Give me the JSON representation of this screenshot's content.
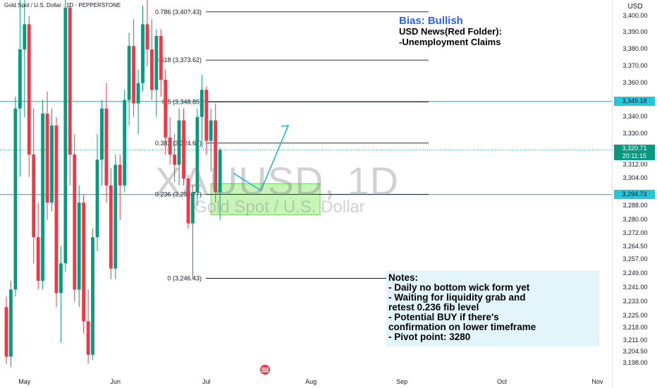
{
  "symbol_line": "Gold Spot / U.S. Dollar · 1D · PEPPERSTONE",
  "watermark": {
    "symbol": "XAUUSD, 1D",
    "name": "Gold Spot / U.S. Dollar"
  },
  "price_axis": {
    "currency": "USD",
    "labels": [
      {
        "text": "3,400.00",
        "value": 3400
      },
      {
        "text": "3,390.00",
        "value": 3390
      },
      {
        "text": "3,380.00",
        "value": 3380
      },
      {
        "text": "3,370.00",
        "value": 3370
      },
      {
        "text": "3,360.00",
        "value": 3360
      },
      {
        "text": "3,340.00",
        "value": 3340
      },
      {
        "text": "3,330.00",
        "value": 3330
      },
      {
        "text": "3,312.00",
        "value": 3312
      },
      {
        "text": "3,304.00",
        "value": 3304
      },
      {
        "text": "3,288.00",
        "value": 3288
      },
      {
        "text": "3,280.00",
        "value": 3280
      },
      {
        "text": "3,272.00",
        "value": 3272
      },
      {
        "text": "3,264.50",
        "value": 3264.5
      },
      {
        "text": "3,257.00",
        "value": 3257
      },
      {
        "text": "3,249.00",
        "value": 3249
      },
      {
        "text": "3,241.00",
        "value": 3241
      },
      {
        "text": "3,233.00",
        "value": 3233
      },
      {
        "text": "3,225.00",
        "value": 3225
      },
      {
        "text": "3,218.00",
        "value": 3218
      },
      {
        "text": "3,211.00",
        "value": 3211
      },
      {
        "text": "3,204.50",
        "value": 3204.5
      },
      {
        "text": "3,198.00",
        "value": 3198
      }
    ],
    "tags": {
      "resistance": {
        "text": "3,349.18",
        "value": 3349.18
      },
      "current_price": {
        "text": "3,320.71",
        "value": 3320.71
      },
      "countdown": "20:11:15",
      "support": {
        "text": "3,294.73",
        "value": 3294.73
      }
    }
  },
  "x_axis": [
    {
      "text": "May",
      "index": 4
    },
    {
      "text": "Jun",
      "index": 24
    },
    {
      "text": "Jul",
      "index": 44
    },
    {
      "text": "Aug",
      "index": 67
    },
    {
      "text": "Sep",
      "index": 87
    },
    {
      "text": "Oct",
      "index": 109
    },
    {
      "text": "Nov",
      "index": 130
    }
  ],
  "fib_levels": [
    {
      "label": "0.786 (3,40?.43)",
      "value": 3402.43
    },
    {
      "label": "0.618 (3,373.62)",
      "value": 3373.62
    },
    {
      "label": "0.5 (3,348.85)",
      "value": 3348.85
    },
    {
      "label": "0.382 (3,324.67)",
      "value": 3324.67
    },
    {
      "label": "0.236 (3,294.77)",
      "value": 3294.77
    },
    {
      "label": "0 (3,246.43)",
      "value": 3246.43
    }
  ],
  "bias": {
    "title": "Bias: Bullish",
    "lines": [
      "USD News(Red Folder):",
      "-Unemployment Claims"
    ]
  },
  "notes": {
    "lines": [
      "Notes:",
      "- Daily no bottom wick form yet",
      "- Waiting for liquidity grab and",
      "retest 0.236 fib level",
      "- Potential BUY if there's",
      "confirmation on lower timeframe",
      "- Pivot point: 3280"
    ]
  },
  "colors": {
    "up": "#089981",
    "down": "#f23645",
    "cyan": "#26c6da",
    "zone_fill": "#b7f0a0",
    "zone_border": "#6cd35a",
    "arrow": "#29b6d6"
  },
  "zone": {
    "index_start": 45,
    "index_end": 69,
    "low": 3283,
    "high": 3301
  },
  "projection": [
    {
      "index": 50,
      "value": 3307
    },
    {
      "index": 56,
      "value": 3297
    },
    {
      "index": 62,
      "value": 3335
    }
  ],
  "chart_data": {
    "type": "candlestick",
    "title": "Gold Spot / U.S. Dollar · 1D · PEPPERSTONE",
    "ylim": [
      3195,
      3407
    ],
    "y_scale": "log",
    "candles": [
      {
        "o": 3230,
        "h": 3236,
        "l": 3198,
        "c": 3202
      },
      {
        "o": 3202,
        "h": 3245,
        "l": 3196,
        "c": 3240
      },
      {
        "o": 3240,
        "h": 3352,
        "l": 3236,
        "c": 3345
      },
      {
        "o": 3345,
        "h": 3420,
        "l": 3305,
        "c": 3380
      },
      {
        "o": 3380,
        "h": 3418,
        "l": 3340,
        "c": 3395
      },
      {
        "o": 3395,
        "h": 3400,
        "l": 3305,
        "c": 3318
      },
      {
        "o": 3318,
        "h": 3345,
        "l": 3255,
        "c": 3270
      },
      {
        "o": 3270,
        "h": 3290,
        "l": 3240,
        "c": 3245
      },
      {
        "o": 3245,
        "h": 3350,
        "l": 3240,
        "c": 3342
      },
      {
        "o": 3342,
        "h": 3355,
        "l": 3280,
        "c": 3290
      },
      {
        "o": 3290,
        "h": 3345,
        "l": 3285,
        "c": 3335
      },
      {
        "o": 3335,
        "h": 3340,
        "l": 3230,
        "c": 3238
      },
      {
        "o": 3238,
        "h": 3265,
        "l": 3210,
        "c": 3255
      },
      {
        "o": 3255,
        "h": 3412,
        "l": 3250,
        "c": 3405
      },
      {
        "o": 3405,
        "h": 3408,
        "l": 3300,
        "c": 3318
      },
      {
        "o": 3318,
        "h": 3330,
        "l": 3233,
        "c": 3240
      },
      {
        "o": 3240,
        "h": 3300,
        "l": 3230,
        "c": 3290
      },
      {
        "o": 3290,
        "h": 3295,
        "l": 3215,
        "c": 3222
      },
      {
        "o": 3222,
        "h": 3240,
        "l": 3198,
        "c": 3203
      },
      {
        "o": 3203,
        "h": 3275,
        "l": 3200,
        "c": 3270
      },
      {
        "o": 3270,
        "h": 3330,
        "l": 3262,
        "c": 3315
      },
      {
        "o": 3315,
        "h": 3350,
        "l": 3300,
        "c": 3345
      },
      {
        "o": 3345,
        "h": 3360,
        "l": 3290,
        "c": 3300
      },
      {
        "o": 3300,
        "h": 3310,
        "l": 3246,
        "c": 3252
      },
      {
        "o": 3252,
        "h": 3318,
        "l": 3246,
        "c": 3312
      },
      {
        "o": 3312,
        "h": 3318,
        "l": 3280,
        "c": 3300
      },
      {
        "o": 3300,
        "h": 3356,
        "l": 3296,
        "c": 3350
      },
      {
        "o": 3350,
        "h": 3390,
        "l": 3335,
        "c": 3382
      },
      {
        "o": 3382,
        "h": 3398,
        "l": 3340,
        "c": 3348
      },
      {
        "o": 3348,
        "h": 3368,
        "l": 3330,
        "c": 3360
      },
      {
        "o": 3360,
        "h": 3406,
        "l": 3355,
        "c": 3395
      },
      {
        "o": 3395,
        "h": 3410,
        "l": 3370,
        "c": 3380
      },
      {
        "o": 3380,
        "h": 3398,
        "l": 3350,
        "c": 3356
      },
      {
        "o": 3356,
        "h": 3392,
        "l": 3340,
        "c": 3388
      },
      {
        "o": 3388,
        "h": 3392,
        "l": 3352,
        "c": 3362
      },
      {
        "o": 3362,
        "h": 3368,
        "l": 3318,
        "c": 3328
      },
      {
        "o": 3328,
        "h": 3340,
        "l": 3312,
        "c": 3318
      },
      {
        "o": 3318,
        "h": 3330,
        "l": 3302,
        "c": 3312
      },
      {
        "o": 3312,
        "h": 3345,
        "l": 3300,
        "c": 3338
      },
      {
        "o": 3338,
        "h": 3345,
        "l": 3300,
        "c": 3304
      },
      {
        "o": 3304,
        "h": 3306,
        "l": 3275,
        "c": 3278
      },
      {
        "o": 3278,
        "h": 3300,
        "l": 3246,
        "c": 3296
      },
      {
        "o": 3296,
        "h": 3345,
        "l": 3288,
        "c": 3340
      },
      {
        "o": 3340,
        "h": 3365,
        "l": 3322,
        "c": 3356
      },
      {
        "o": 3356,
        "h": 3358,
        "l": 3318,
        "c": 3326
      },
      {
        "o": 3326,
        "h": 3345,
        "l": 3308,
        "c": 3338
      },
      {
        "o": 3338,
        "h": 3348,
        "l": 3290,
        "c": 3296
      },
      {
        "o": 3296,
        "h": 3322,
        "l": 3280,
        "c": 3320.71
      }
    ]
  }
}
